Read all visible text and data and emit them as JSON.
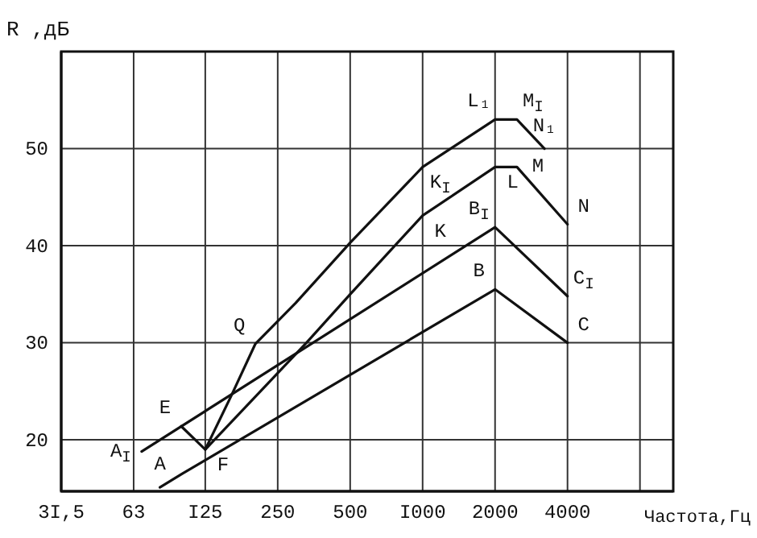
{
  "chart_data": {
    "type": "line",
    "xlabel": "Частота,Гц",
    "ylabel": "R ,дБ",
    "log": "x",
    "grid": true,
    "marker": "none",
    "line_style": "solid",
    "xlim": [
      31.5,
      11000
    ],
    "ylim": [
      14.7,
      60
    ],
    "xticks": [
      {
        "value": 31.5,
        "label": "3I,5"
      },
      63,
      {
        "value": 125,
        "label": "I25"
      },
      250,
      500,
      {
        "value": 1000,
        "label": "I000"
      },
      2000,
      4000,
      {
        "value": 8000,
        "label": null
      }
    ],
    "yticks": [
      20,
      30,
      40,
      50
    ],
    "series": [
      {
        "color": "#111111",
        "x": [
          81,
          100,
          125,
          2000,
          4000
        ],
        "values": [
          15.1,
          16.5,
          17.9,
          35.5,
          30
        ]
      },
      {
        "color": "#111111",
        "x": [
          68,
          2000,
          4000
        ],
        "values": [
          18.8,
          41.9,
          34.8
        ]
      },
      {
        "color": "#111111",
        "x": [
          125,
          329,
          500,
          1000,
          2000,
          2466,
          4000
        ],
        "values": [
          19.0,
          30,
          35,
          43.1,
          48.1,
          48.1,
          42.2
        ]
      },
      {
        "color": "#111111",
        "x": [
          99.3,
          125,
          160,
          202,
          297,
          500,
          1000,
          2000,
          2466,
          3209
        ],
        "values": [
          21.4,
          19.0,
          24.5,
          29.9,
          34.1,
          40.3,
          48.1,
          53.0,
          53.0,
          50
        ]
      }
    ],
    "annotations": [
      {
        "text": "A",
        "x": 81,
        "y": 15.1
      },
      {
        "text": "A$_{I}$",
        "x": 68,
        "y": 18.8
      },
      {
        "text": "E",
        "x": 99.3,
        "y": 21.4
      },
      {
        "text": "F",
        "x": 125,
        "y": 19.0
      },
      {
        "text": "Q",
        "x": 202,
        "y": 29.9
      },
      {
        "text": "K$_{I}$",
        "x": 1000,
        "y": 48.1
      },
      {
        "text": "K",
        "x": 1000,
        "y": 43.1
      },
      {
        "text": "L₁",
        "x": 2000,
        "y": 53.0
      },
      {
        "text": "M$_{I}$",
        "x": 2466,
        "y": 53.0
      },
      {
        "text": "N₁",
        "x": 3209,
        "y": 50
      },
      {
        "text": "L",
        "x": 2000,
        "y": 48.1
      },
      {
        "text": "M",
        "x": 2466,
        "y": 48.1
      },
      {
        "text": "N",
        "x": 4000,
        "y": 42.2
      },
      {
        "text": "B$_{I}$",
        "x": 2000,
        "y": 41.9
      },
      {
        "text": "B",
        "x": 2000,
        "y": 35.5
      },
      {
        "text": "C$_{I}$",
        "x": 4000,
        "y": 34.8
      },
      {
        "text": "C",
        "x": 4000,
        "y": 30
      }
    ]
  }
}
